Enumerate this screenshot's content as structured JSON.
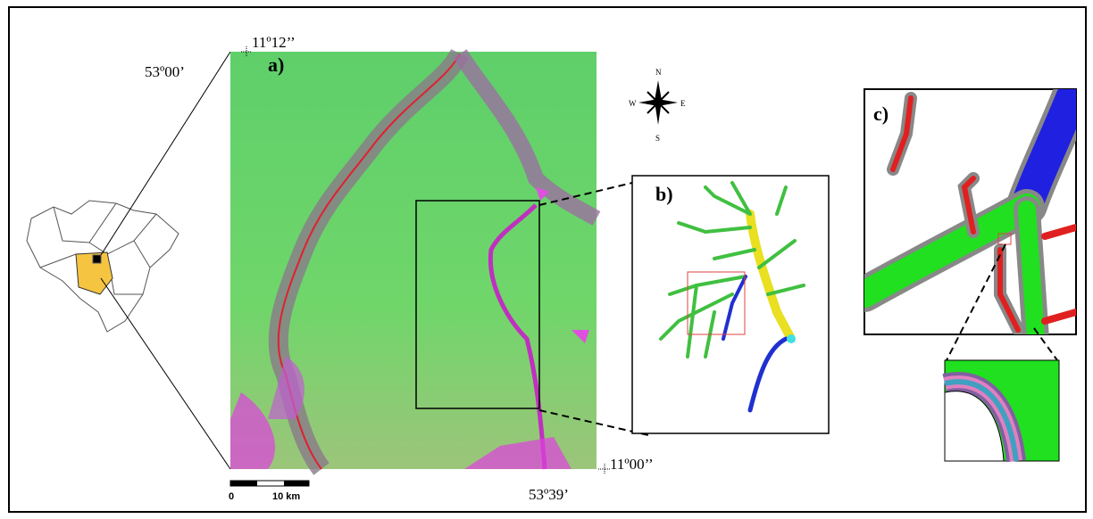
{
  "labels": {
    "panel_a": "a)",
    "panel_b": "b)",
    "panel_c": "c)",
    "top_lat": "11º12’’",
    "top_lon": "53º00’",
    "bottom_lat": "11º00’’",
    "bottom_lon": "53º39’"
  },
  "compass": {
    "n": "N",
    "s": "S",
    "w": "W",
    "e": "E"
  },
  "scale_bar": {
    "start": "0",
    "end": "10 km"
  }
}
